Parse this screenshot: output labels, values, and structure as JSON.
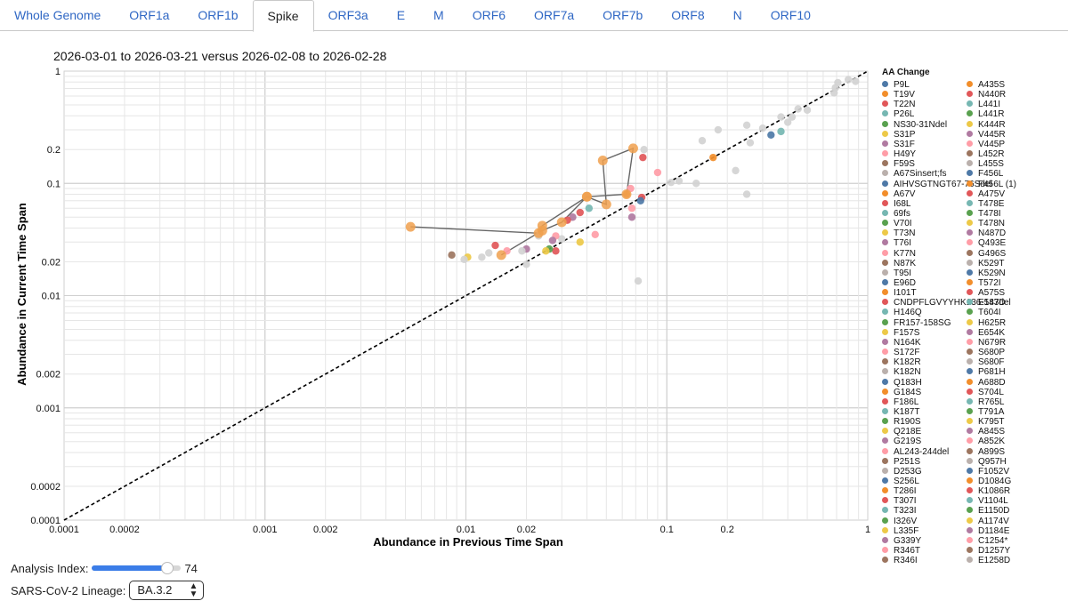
{
  "tabs": [
    {
      "label": "Whole Genome",
      "active": false
    },
    {
      "label": "ORF1a",
      "active": false
    },
    {
      "label": "ORF1b",
      "active": false
    },
    {
      "label": "Spike",
      "active": true
    },
    {
      "label": "ORF3a",
      "active": false
    },
    {
      "label": "E",
      "active": false
    },
    {
      "label": "M",
      "active": false
    },
    {
      "label": "ORF6",
      "active": false
    },
    {
      "label": "ORF7a",
      "active": false
    },
    {
      "label": "ORF7b",
      "active": false
    },
    {
      "label": "ORF8",
      "active": false
    },
    {
      "label": "N",
      "active": false
    },
    {
      "label": "ORF10",
      "active": false
    }
  ],
  "controls": {
    "analysis_index_label": "Analysis Index:",
    "analysis_index_value": "74",
    "analysis_index_fraction": 0.85,
    "lineage_label": "SARS-CoV-2 Lineage:",
    "lineage_value": "BA.3.2"
  },
  "chart_data": {
    "type": "scatter",
    "title": "2026-03-01 to 2026-03-21 versus 2026-02-08 to 2026-02-28",
    "xlabel": "Abundance in Previous Time Span",
    "ylabel": "Abundance in Current Time Span",
    "x_scale": "log",
    "y_scale": "log",
    "xlim": [
      0.0001,
      1
    ],
    "ylim": [
      0.0001,
      1
    ],
    "grid": true,
    "x_ticks": [
      "0.0001",
      "0.0002",
      "0.001",
      "0.002",
      "0.01",
      "0.02",
      "0.1",
      "0.2",
      "1"
    ],
    "y_ticks": [
      "0.0001",
      "0.0002",
      "0.001",
      "0.002",
      "0.01",
      "0.02",
      "0.1",
      "0.2",
      "1"
    ],
    "tick_values": [
      0.0001,
      0.0002,
      0.001,
      0.002,
      0.01,
      0.02,
      0.1,
      0.2,
      1
    ],
    "diagonal": "y = x",
    "legend_title": "AA Change",
    "legend_position": "right",
    "legend": [
      {
        "label": "P9L",
        "color": "#4e79a7"
      },
      {
        "label": "T19V",
        "color": "#f28e2b"
      },
      {
        "label": "T22N",
        "color": "#e15759"
      },
      {
        "label": "P26L",
        "color": "#76b7b2"
      },
      {
        "label": "NS30-31Ndel",
        "color": "#59a14f"
      },
      {
        "label": "S31P",
        "color": "#edc948"
      },
      {
        "label": "S31F",
        "color": "#b07aa1"
      },
      {
        "label": "H49Y",
        "color": "#ff9da7"
      },
      {
        "label": "F59S",
        "color": "#9c755f"
      },
      {
        "label": "A67Sinsert;fs",
        "color": "#bab0ac"
      },
      {
        "label": "AIHVSGTNGT67-76Sdel",
        "color": "#4e79a7"
      },
      {
        "label": "A67V",
        "color": "#f28e2b"
      },
      {
        "label": "I68L",
        "color": "#e15759"
      },
      {
        "label": "69fs",
        "color": "#76b7b2"
      },
      {
        "label": "V70I",
        "color": "#59a14f"
      },
      {
        "label": "T73N",
        "color": "#edc948"
      },
      {
        "label": "T76I",
        "color": "#b07aa1"
      },
      {
        "label": "K77N",
        "color": "#ff9da7"
      },
      {
        "label": "N87K",
        "color": "#9c755f"
      },
      {
        "label": "T95I",
        "color": "#bab0ac"
      },
      {
        "label": "E96D",
        "color": "#4e79a7"
      },
      {
        "label": "I101T",
        "color": "#f28e2b"
      },
      {
        "label": "CNDPFLGVYYHK136-147del",
        "color": "#e15759"
      },
      {
        "label": "H146Q",
        "color": "#76b7b2"
      },
      {
        "label": "FR157-158SG",
        "color": "#59a14f"
      },
      {
        "label": "F157S",
        "color": "#edc948"
      },
      {
        "label": "N164K",
        "color": "#b07aa1"
      },
      {
        "label": "S172F",
        "color": "#ff9da7"
      },
      {
        "label": "K182R",
        "color": "#9c755f"
      },
      {
        "label": "K182N",
        "color": "#bab0ac"
      },
      {
        "label": "Q183H",
        "color": "#4e79a7"
      },
      {
        "label": "G184S",
        "color": "#f28e2b"
      },
      {
        "label": "F186L",
        "color": "#e15759"
      },
      {
        "label": "K187T",
        "color": "#76b7b2"
      },
      {
        "label": "R190S",
        "color": "#59a14f"
      },
      {
        "label": "Q218E",
        "color": "#edc948"
      },
      {
        "label": "G219S",
        "color": "#b07aa1"
      },
      {
        "label": "AL243-244del",
        "color": "#ff9da7"
      },
      {
        "label": "P251S",
        "color": "#9c755f"
      },
      {
        "label": "D253G",
        "color": "#bab0ac"
      },
      {
        "label": "S256L",
        "color": "#4e79a7"
      },
      {
        "label": "T286I",
        "color": "#f28e2b"
      },
      {
        "label": "T307I",
        "color": "#e15759"
      },
      {
        "label": "T323I",
        "color": "#76b7b2"
      },
      {
        "label": "I326V",
        "color": "#59a14f"
      },
      {
        "label": "L335F",
        "color": "#edc948"
      },
      {
        "label": "G339Y",
        "color": "#b07aa1"
      },
      {
        "label": "R346T",
        "color": "#ff9da7"
      },
      {
        "label": "R346I",
        "color": "#9c755f"
      },
      {
        "label": "A435S",
        "color": "#f28e2b"
      },
      {
        "label": "N440R",
        "color": "#e15759"
      },
      {
        "label": "L441I",
        "color": "#76b7b2"
      },
      {
        "label": "L441R",
        "color": "#59a14f"
      },
      {
        "label": "K444R",
        "color": "#edc948"
      },
      {
        "label": "V445R",
        "color": "#b07aa1"
      },
      {
        "label": "V445P",
        "color": "#ff9da7"
      },
      {
        "label": "L452R",
        "color": "#9c755f"
      },
      {
        "label": "L455S",
        "color": "#bab0ac"
      },
      {
        "label": "F456L",
        "color": "#4e79a7"
      },
      {
        "label": "F456L (1)",
        "color": "#f28e2b"
      },
      {
        "label": "A475V",
        "color": "#e15759"
      },
      {
        "label": "T478E",
        "color": "#76b7b2"
      },
      {
        "label": "T478I",
        "color": "#59a14f"
      },
      {
        "label": "T478N",
        "color": "#edc948"
      },
      {
        "label": "N487D",
        "color": "#b07aa1"
      },
      {
        "label": "Q493E",
        "color": "#ff9da7"
      },
      {
        "label": "G496S",
        "color": "#9c755f"
      },
      {
        "label": "K529T",
        "color": "#bab0ac"
      },
      {
        "label": "K529N",
        "color": "#4e79a7"
      },
      {
        "label": "T572I",
        "color": "#f28e2b"
      },
      {
        "label": "A575S",
        "color": "#e15759"
      },
      {
        "label": "E583D",
        "color": "#76b7b2"
      },
      {
        "label": "T604I",
        "color": "#59a14f"
      },
      {
        "label": "H625R",
        "color": "#edc948"
      },
      {
        "label": "E654K",
        "color": "#b07aa1"
      },
      {
        "label": "N679R",
        "color": "#ff9da7"
      },
      {
        "label": "S680P",
        "color": "#9c755f"
      },
      {
        "label": "S680F",
        "color": "#bab0ac"
      },
      {
        "label": "P681H",
        "color": "#4e79a7"
      },
      {
        "label": "A688D",
        "color": "#f28e2b"
      },
      {
        "label": "S704L",
        "color": "#e15759"
      },
      {
        "label": "R765L",
        "color": "#76b7b2"
      },
      {
        "label": "T791A",
        "color": "#59a14f"
      },
      {
        "label": "K795T",
        "color": "#edc948"
      },
      {
        "label": "A845S",
        "color": "#b07aa1"
      },
      {
        "label": "A852K",
        "color": "#ff9da7"
      },
      {
        "label": "A899S",
        "color": "#9c755f"
      },
      {
        "label": "Q957H",
        "color": "#bab0ac"
      },
      {
        "label": "F1052V",
        "color": "#4e79a7"
      },
      {
        "label": "D1084G",
        "color": "#f28e2b"
      },
      {
        "label": "K1086R",
        "color": "#e15759"
      },
      {
        "label": "V1104L",
        "color": "#76b7b2"
      },
      {
        "label": "E1150D",
        "color": "#59a14f"
      },
      {
        "label": "A1174V",
        "color": "#edc948"
      },
      {
        "label": "D1184E",
        "color": "#b07aa1"
      },
      {
        "label": "C1254*",
        "color": "#ff9da7"
      },
      {
        "label": "D1257Y",
        "color": "#9c755f"
      },
      {
        "label": "E1258D",
        "color": "#bab0ac"
      }
    ],
    "points": [
      {
        "x": 0.87,
        "y": 0.81,
        "color": "#d3d3d3"
      },
      {
        "x": 0.8,
        "y": 0.84,
        "color": "#d3d3d3"
      },
      {
        "x": 0.71,
        "y": 0.79,
        "color": "#d3d3d3"
      },
      {
        "x": 0.69,
        "y": 0.71,
        "color": "#d3d3d3"
      },
      {
        "x": 0.68,
        "y": 0.64,
        "color": "#d3d3d3"
      },
      {
        "x": 0.5,
        "y": 0.45,
        "color": "#d3d3d3"
      },
      {
        "x": 0.45,
        "y": 0.46,
        "color": "#d3d3d3"
      },
      {
        "x": 0.42,
        "y": 0.39,
        "color": "#d3d3d3"
      },
      {
        "x": 0.4,
        "y": 0.35,
        "color": "#d3d3d3"
      },
      {
        "x": 0.37,
        "y": 0.39,
        "color": "#d3d3d3"
      },
      {
        "x": 0.3,
        "y": 0.31,
        "color": "#d3d3d3"
      },
      {
        "x": 0.37,
        "y": 0.29,
        "color": "#76b7b2"
      },
      {
        "x": 0.33,
        "y": 0.27,
        "color": "#4e79a7"
      },
      {
        "x": 0.25,
        "y": 0.33,
        "color": "#d3d3d3"
      },
      {
        "x": 0.18,
        "y": 0.3,
        "color": "#d3d3d3"
      },
      {
        "x": 0.15,
        "y": 0.24,
        "color": "#d3d3d3"
      },
      {
        "x": 0.26,
        "y": 0.23,
        "color": "#d3d3d3"
      },
      {
        "x": 0.22,
        "y": 0.13,
        "color": "#d3d3d3"
      },
      {
        "x": 0.17,
        "y": 0.17,
        "color": "#f28e2b"
      },
      {
        "x": 0.14,
        "y": 0.1,
        "color": "#d3d3d3"
      },
      {
        "x": 0.115,
        "y": 0.105,
        "color": "#d3d3d3"
      },
      {
        "x": 0.105,
        "y": 0.102,
        "color": "#d3d3d3"
      },
      {
        "x": 0.25,
        "y": 0.08,
        "color": "#d3d3d3"
      },
      {
        "x": 0.09,
        "y": 0.125,
        "color": "#ff9da7"
      },
      {
        "x": 0.077,
        "y": 0.2,
        "color": "#d3d3d3"
      },
      {
        "x": 0.076,
        "y": 0.17,
        "color": "#e15759"
      },
      {
        "x": 0.075,
        "y": 0.075,
        "color": "#e15759"
      },
      {
        "x": 0.074,
        "y": 0.07,
        "color": "#4e79a7"
      },
      {
        "x": 0.066,
        "y": 0.09,
        "color": "#ff9da7"
      },
      {
        "x": 0.067,
        "y": 0.06,
        "color": "#ff9da7"
      },
      {
        "x": 0.067,
        "y": 0.05,
        "color": "#b07aa1"
      },
      {
        "x": 0.063,
        "y": 0.08,
        "color": "#f28e2b"
      },
      {
        "x": 0.072,
        "y": 0.0135,
        "color": "#d3d3d3"
      },
      {
        "x": 0.044,
        "y": 0.035,
        "color": "#ff9da7"
      },
      {
        "x": 0.041,
        "y": 0.06,
        "color": "#76b7b2"
      },
      {
        "x": 0.037,
        "y": 0.055,
        "color": "#e15759"
      },
      {
        "x": 0.034,
        "y": 0.05,
        "color": "#b07aa1"
      },
      {
        "x": 0.032,
        "y": 0.047,
        "color": "#e15759"
      },
      {
        "x": 0.037,
        "y": 0.03,
        "color": "#edc948"
      },
      {
        "x": 0.03,
        "y": 0.032,
        "color": "#d3d3d3"
      },
      {
        "x": 0.028,
        "y": 0.025,
        "color": "#e15759"
      },
      {
        "x": 0.028,
        "y": 0.034,
        "color": "#ff9da7"
      },
      {
        "x": 0.027,
        "y": 0.031,
        "color": "#b07aa1"
      },
      {
        "x": 0.026,
        "y": 0.026,
        "color": "#59a14f"
      },
      {
        "x": 0.025,
        "y": 0.025,
        "color": "#edc948"
      },
      {
        "x": 0.023,
        "y": 0.034,
        "color": "#d3d3d3"
      },
      {
        "x": 0.02,
        "y": 0.026,
        "color": "#b07aa1"
      },
      {
        "x": 0.019,
        "y": 0.025,
        "color": "#d3d3d3"
      },
      {
        "x": 0.016,
        "y": 0.025,
        "color": "#ff9da7"
      },
      {
        "x": 0.014,
        "y": 0.028,
        "color": "#e15759"
      },
      {
        "x": 0.013,
        "y": 0.024,
        "color": "#d3d3d3"
      },
      {
        "x": 0.02,
        "y": 0.019,
        "color": "#d3d3d3"
      },
      {
        "x": 0.012,
        "y": 0.022,
        "color": "#d3d3d3"
      },
      {
        "x": 0.0085,
        "y": 0.023,
        "color": "#9c755f"
      },
      {
        "x": 0.0102,
        "y": 0.022,
        "color": "#edc948"
      },
      {
        "x": 0.0098,
        "y": 0.021,
        "color": "#d3d3d3"
      }
    ],
    "trajectory": [
      {
        "x": 0.0053,
        "y": 0.041
      },
      {
        "x": 0.023,
        "y": 0.036
      },
      {
        "x": 0.024,
        "y": 0.042
      },
      {
        "x": 0.04,
        "y": 0.076
      },
      {
        "x": 0.05,
        "y": 0.065
      },
      {
        "x": 0.048,
        "y": 0.16
      },
      {
        "x": 0.068,
        "y": 0.205
      },
      {
        "x": 0.063,
        "y": 0.08
      },
      {
        "x": 0.04,
        "y": 0.076
      },
      {
        "x": 0.03,
        "y": 0.045
      },
      {
        "x": 0.024,
        "y": 0.038
      },
      {
        "x": 0.015,
        "y": 0.023
      }
    ],
    "trajectory_color": "#f0a04e",
    "trajectory_line_color": "#666666"
  }
}
